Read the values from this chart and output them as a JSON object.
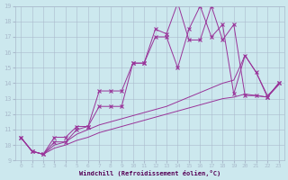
{
  "xlabel": "Windchill (Refroidissement éolien,°C)",
  "bg_color": "#cce8ee",
  "line_color": "#993399",
  "xlim": [
    -0.5,
    23.5
  ],
  "ylim": [
    9,
    19
  ],
  "xticks": [
    0,
    1,
    2,
    3,
    4,
    5,
    6,
    7,
    8,
    9,
    10,
    11,
    12,
    13,
    14,
    15,
    16,
    17,
    18,
    19,
    20,
    21,
    22,
    23
  ],
  "yticks": [
    9,
    10,
    11,
    12,
    13,
    14,
    15,
    16,
    17,
    18,
    19
  ],
  "series": [
    {
      "x": [
        0,
        1,
        2,
        3,
        4,
        5,
        6,
        7,
        8,
        9,
        10,
        11,
        12,
        13,
        14,
        15,
        16,
        17,
        18,
        19,
        20,
        21,
        22,
        23
      ],
      "y": [
        10.5,
        9.6,
        9.4,
        10.5,
        10.5,
        11.2,
        11.2,
        13.5,
        13.5,
        13.5,
        15.3,
        15.3,
        17.5,
        17.2,
        19.2,
        16.8,
        16.8,
        19.0,
        16.8,
        17.8,
        13.2,
        13.2,
        13.1,
        14.0
      ]
    },
    {
      "x": [
        0,
        1,
        2,
        3,
        4,
        5,
        6,
        7,
        8,
        9,
        10,
        11,
        12,
        13,
        14,
        15,
        16,
        17,
        18,
        19,
        20,
        21,
        22,
        23
      ],
      "y": [
        10.5,
        9.6,
        9.4,
        10.2,
        10.2,
        11.0,
        11.2,
        12.5,
        12.5,
        12.5,
        15.3,
        15.3,
        17.0,
        17.0,
        15.0,
        17.5,
        19.0,
        17.0,
        17.8,
        13.3,
        15.8,
        14.7,
        13.1,
        14.0
      ]
    },
    {
      "x": [
        0,
        1,
        2,
        3,
        4,
        5,
        6,
        7,
        8,
        9,
        10,
        11,
        12,
        13,
        14,
        15,
        16,
        17,
        18,
        19,
        20,
        21,
        22,
        23
      ],
      "y": [
        10.5,
        9.6,
        9.4,
        9.8,
        10.0,
        10.3,
        10.5,
        10.8,
        11.0,
        11.2,
        11.4,
        11.6,
        11.8,
        12.0,
        12.2,
        12.4,
        12.6,
        12.8,
        13.0,
        13.1,
        13.3,
        13.2,
        13.1,
        13.9
      ]
    },
    {
      "x": [
        0,
        1,
        2,
        3,
        4,
        5,
        6,
        7,
        8,
        9,
        10,
        11,
        12,
        13,
        14,
        15,
        16,
        17,
        18,
        19,
        20,
        21,
        22,
        23
      ],
      "y": [
        10.5,
        9.6,
        9.4,
        10.0,
        10.2,
        10.7,
        11.0,
        11.3,
        11.5,
        11.7,
        11.9,
        12.1,
        12.3,
        12.5,
        12.8,
        13.1,
        13.4,
        13.7,
        14.0,
        14.2,
        15.8,
        14.7,
        13.2,
        13.9
      ]
    }
  ]
}
